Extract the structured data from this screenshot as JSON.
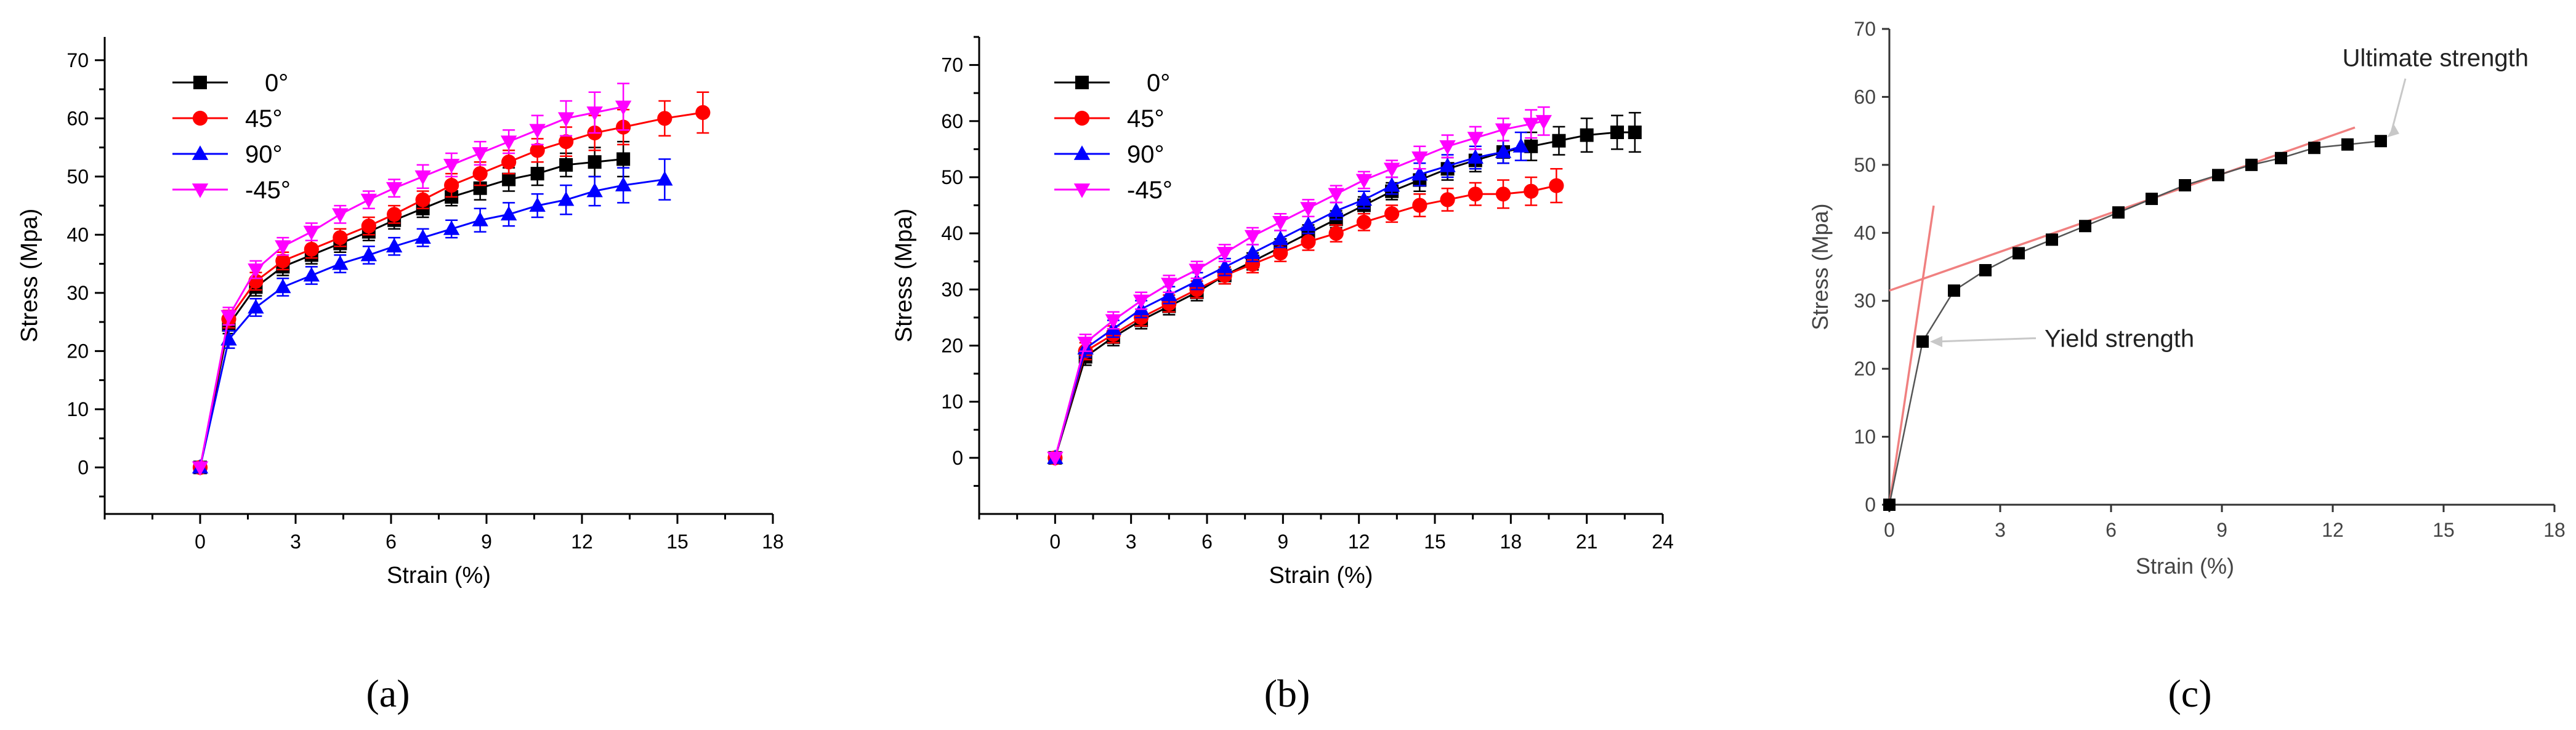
{
  "colors": {
    "s0": "#000000",
    "s45": "#ff0000",
    "s90": "#0000ff",
    "sm45": "#ff00ff",
    "fit_line": "#f08080",
    "curve_c": "#555555",
    "pointer": "#c8c8c8"
  },
  "chart_data": [
    {
      "type": "line",
      "panel_label": "(a)",
      "xlabel": "Strain (%)",
      "ylabel": "Stress (Mpa)",
      "xlim": [
        -3,
        18
      ],
      "ylim": [
        -8,
        74
      ],
      "xticks": [
        0,
        3,
        6,
        9,
        12,
        15,
        18
      ],
      "xtick_labels": [
        "0",
        "3",
        "6",
        "9",
        "12",
        "15",
        "18"
      ],
      "yticks": [
        0,
        10,
        20,
        30,
        40,
        50,
        60,
        70
      ],
      "ytick_labels": [
        "0",
        "10",
        "20",
        "30",
        "40",
        "50",
        "60",
        "70"
      ],
      "legend": "top-left",
      "series": [
        {
          "name": "0°",
          "color_key": "s0",
          "marker": "square",
          "x": [
            0,
            0.9,
            1.75,
            2.6,
            3.5,
            4.4,
            5.3,
            6.1,
            7.0,
            7.9,
            8.8,
            9.7,
            10.6,
            11.5,
            12.4,
            13.3
          ],
          "y": [
            0,
            24.5,
            31,
            34.5,
            36.5,
            38.5,
            40.5,
            42.5,
            44.5,
            46.5,
            48,
            49.5,
            50.5,
            52,
            52.5,
            53
          ],
          "err": [
            0,
            1.5,
            1.5,
            1.5,
            1.5,
            1.5,
            1.5,
            1.5,
            1.5,
            1.5,
            2,
            2,
            2,
            2,
            2.5,
            3
          ]
        },
        {
          "name": "45°",
          "color_key": "s45",
          "marker": "circle",
          "x": [
            0,
            0.9,
            1.75,
            2.6,
            3.5,
            4.4,
            5.3,
            6.1,
            7.0,
            7.9,
            8.8,
            9.7,
            10.6,
            11.5,
            12.4,
            13.3,
            14.6,
            15.8
          ],
          "y": [
            0,
            25.5,
            32,
            35.5,
            37.5,
            39.5,
            41.5,
            43.5,
            46,
            48.5,
            50.5,
            52.5,
            54.5,
            56,
            57.5,
            58.5,
            60,
            61
          ],
          "err": [
            0,
            1.5,
            1.5,
            1.5,
            1.5,
            1.5,
            1.5,
            1.5,
            1.5,
            2,
            2,
            2,
            2,
            2.5,
            3,
            3,
            3,
            3.5
          ]
        },
        {
          "name": "90°",
          "color_key": "s90",
          "marker": "triangle-up",
          "x": [
            0,
            0.9,
            1.75,
            2.6,
            3.5,
            4.4,
            5.3,
            6.1,
            7.0,
            7.9,
            8.8,
            9.7,
            10.6,
            11.5,
            12.4,
            13.3,
            14.6
          ],
          "y": [
            0,
            22,
            27.5,
            31,
            33,
            35,
            36.5,
            38,
            39.5,
            41,
            42.5,
            43.5,
            45,
            46,
            47.5,
            48.5,
            49.5
          ],
          "err": [
            0,
            1.5,
            1.5,
            1.5,
            1.5,
            1.5,
            1.5,
            1.5,
            1.5,
            1.5,
            2,
            2,
            2,
            2.5,
            2.5,
            3,
            3.5
          ]
        },
        {
          "name": "-45°",
          "color_key": "sm45",
          "marker": "triangle-down",
          "x": [
            0,
            0.9,
            1.75,
            2.6,
            3.5,
            4.4,
            5.3,
            6.1,
            7.0,
            7.9,
            8.8,
            9.7,
            10.6,
            11.5,
            12.4,
            13.3
          ],
          "y": [
            0,
            26,
            34,
            38,
            40.5,
            43.5,
            46,
            48,
            50,
            52,
            54,
            56,
            58,
            60,
            61,
            62
          ],
          "err": [
            0,
            1.5,
            1.5,
            1.5,
            1.5,
            1.5,
            1.5,
            1.5,
            2,
            2,
            2,
            2,
            2.5,
            3,
            3.5,
            4
          ]
        }
      ]
    },
    {
      "type": "line",
      "panel_label": "(b)",
      "xlabel": "Strain (%)",
      "ylabel": "Stress (Mpa)",
      "xlim": [
        -3,
        24
      ],
      "ylim": [
        -10,
        75
      ],
      "xticks": [
        0,
        3,
        6,
        9,
        12,
        15,
        18,
        21,
        24
      ],
      "xtick_labels": [
        "0",
        "3",
        "6",
        "9",
        "12",
        "15",
        "18",
        "21",
        "24"
      ],
      "yticks": [
        0,
        10,
        20,
        30,
        40,
        50,
        60,
        70
      ],
      "ytick_labels": [
        "0",
        "10",
        "20",
        "30",
        "40",
        "50",
        "60",
        "70"
      ],
      "legend": "top-left",
      "series": [
        {
          "name": "0°",
          "color_key": "s0",
          "marker": "square",
          "x": [
            0,
            1.2,
            2.3,
            3.4,
            4.5,
            5.6,
            6.7,
            7.8,
            8.9,
            10.0,
            11.1,
            12.2,
            13.3,
            14.4,
            15.5,
            16.6,
            17.7,
            18.8,
            19.9,
            21.0,
            22.2,
            22.9
          ],
          "y": [
            0,
            18,
            21.5,
            24.5,
            27,
            29.5,
            32.5,
            35,
            37.5,
            40,
            42.5,
            45,
            47.5,
            49.5,
            51.5,
            53,
            54.5,
            55.5,
            56.5,
            57.5,
            58,
            58
          ],
          "err": [
            0,
            1.5,
            1.5,
            1.5,
            1.5,
            1.5,
            1.5,
            1.5,
            1.5,
            1.5,
            1.5,
            1.5,
            1.5,
            2,
            2,
            2,
            2,
            2.5,
            2.5,
            3,
            3,
            3.5
          ]
        },
        {
          "name": "45°",
          "color_key": "s45",
          "marker": "circle",
          "x": [
            0,
            1.2,
            2.3,
            3.4,
            4.5,
            5.6,
            6.7,
            7.8,
            8.9,
            10.0,
            11.1,
            12.2,
            13.3,
            14.4,
            15.5,
            16.6,
            17.7,
            18.8,
            19.8
          ],
          "y": [
            0,
            19,
            22,
            25,
            27.5,
            30,
            32.5,
            34.5,
            36.5,
            38.5,
            40,
            42,
            43.5,
            45,
            46,
            47,
            47,
            47.5,
            48.5
          ],
          "err": [
            0,
            1.5,
            1.5,
            1.5,
            1.5,
            1.5,
            1.5,
            1.5,
            1.5,
            1.5,
            1.5,
            1.5,
            1.5,
            2,
            2,
            2,
            2.5,
            2.5,
            3
          ]
        },
        {
          "name": "90°",
          "color_key": "s90",
          "marker": "triangle-up",
          "x": [
            0,
            1.2,
            2.3,
            3.4,
            4.5,
            5.6,
            6.7,
            7.8,
            8.9,
            10.0,
            11.1,
            12.2,
            13.3,
            14.4,
            15.5,
            16.6,
            17.7,
            18.4
          ],
          "y": [
            0,
            19.5,
            23,
            26.5,
            29,
            31.5,
            34,
            36.5,
            39,
            41.5,
            44,
            46,
            48.5,
            50.5,
            52,
            53.5,
            54.5,
            55.5
          ],
          "err": [
            0,
            1.5,
            1.5,
            1.5,
            1.5,
            1.5,
            1.5,
            1.5,
            1.5,
            1.5,
            1.5,
            1.5,
            1.5,
            2,
            2,
            2,
            2,
            2.5
          ]
        },
        {
          "name": "-45°",
          "color_key": "sm45",
          "marker": "triangle-down",
          "x": [
            0,
            1.2,
            2.3,
            3.4,
            4.5,
            5.6,
            6.7,
            7.8,
            8.9,
            10.0,
            11.1,
            12.2,
            13.3,
            14.4,
            15.5,
            16.6,
            17.7,
            18.8,
            19.3
          ],
          "y": [
            0,
            20.5,
            24.5,
            28,
            31,
            33.5,
            36.5,
            39.5,
            42,
            44.5,
            47,
            49.5,
            51.5,
            53.5,
            55.5,
            57,
            58.5,
            59.5,
            60
          ],
          "err": [
            0,
            1.5,
            1.5,
            1.5,
            1.5,
            1.5,
            1.5,
            1.5,
            1.5,
            1.5,
            1.5,
            1.5,
            1.5,
            2,
            2,
            2,
            2,
            2.5,
            2.5
          ]
        }
      ]
    },
    {
      "type": "line",
      "panel_label": "(c)",
      "xlabel": "Strain (%)",
      "ylabel": "Stress (Mpa)",
      "xlim": [
        0,
        18
      ],
      "ylim": [
        0,
        70
      ],
      "xticks": [
        0,
        3,
        6,
        9,
        12,
        15,
        18
      ],
      "xtick_labels": [
        "0",
        "3",
        "6",
        "9",
        "12",
        "15",
        "18"
      ],
      "yticks": [
        0,
        10,
        20,
        30,
        40,
        50,
        60,
        70
      ],
      "ytick_labels": [
        "0",
        "10",
        "20",
        "30",
        "40",
        "50",
        "60",
        "70"
      ],
      "series": [
        {
          "name": "0°",
          "color_key": "s0",
          "marker": "square",
          "x": [
            0,
            0.9,
            1.75,
            2.6,
            3.5,
            4.4,
            5.3,
            6.2,
            7.1,
            8.0,
            8.9,
            9.8,
            10.6,
            11.5,
            12.4,
            13.3
          ],
          "y": [
            0,
            24,
            31.5,
            34.5,
            37,
            39,
            41,
            43,
            45,
            47,
            48.5,
            50,
            51,
            52.5,
            53,
            53.5
          ]
        }
      ],
      "fit_lines": [
        {
          "name": "elastic",
          "x": [
            0,
            1.2
          ],
          "y": [
            0,
            44
          ]
        },
        {
          "name": "plastic",
          "x": [
            0,
            12.6
          ],
          "y": [
            31.5,
            55.5
          ]
        }
      ],
      "annotations": [
        {
          "text": "Ultimate strength",
          "target": [
            13.3,
            53.5
          ],
          "text_at": [
            17.3,
            64.5
          ]
        },
        {
          "text": "Yield strength",
          "target": [
            0.9,
            24
          ],
          "text_at": [
            4.2,
            24.5
          ]
        }
      ]
    }
  ]
}
